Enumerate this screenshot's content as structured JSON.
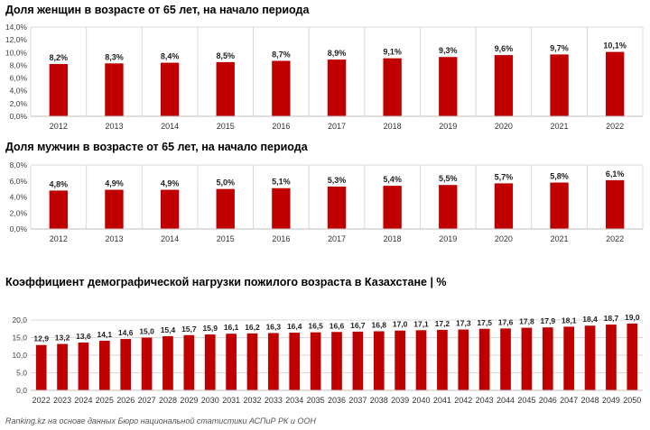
{
  "chart_data": [
    {
      "type": "bar",
      "title": "Доля женщин в возрасте от 65 лет, на начало периода",
      "categories": [
        "2012",
        "2013",
        "2014",
        "2015",
        "2016",
        "2017",
        "2018",
        "2019",
        "2020",
        "2021",
        "2022"
      ],
      "values": [
        8.2,
        8.3,
        8.4,
        8.5,
        8.7,
        8.9,
        9.1,
        9.3,
        9.6,
        9.7,
        10.1
      ],
      "value_labels": [
        "8,2%",
        "8,3%",
        "8,4%",
        "8,5%",
        "8,7%",
        "8,9%",
        "9,1%",
        "9,3%",
        "9,6%",
        "9,7%",
        "10,1%"
      ],
      "ylim": [
        0,
        14
      ],
      "yticks": [
        0,
        2,
        4,
        6,
        8,
        10,
        12,
        14
      ],
      "ytick_labels": [
        "0,0%",
        "2,0%",
        "4,0%",
        "6,0%",
        "8,0%",
        "10,0%",
        "12,0%",
        "14,0%"
      ],
      "bar_color": "#c00000",
      "grid": "vertical"
    },
    {
      "type": "bar",
      "title": "Доля мужчин в возрасте от 65 лет, на начало периода",
      "categories": [
        "2012",
        "2013",
        "2014",
        "2015",
        "2016",
        "2017",
        "2018",
        "2019",
        "2020",
        "2021",
        "2022"
      ],
      "values": [
        4.8,
        4.9,
        4.9,
        5.0,
        5.1,
        5.3,
        5.4,
        5.5,
        5.7,
        5.8,
        6.1
      ],
      "value_labels": [
        "4,8%",
        "4,9%",
        "4,9%",
        "5,0%",
        "5,1%",
        "5,3%",
        "5,4%",
        "5,5%",
        "5,7%",
        "5,8%",
        "6,1%"
      ],
      "ylim": [
        0,
        8
      ],
      "yticks": [
        0,
        2,
        4,
        6,
        8
      ],
      "ytick_labels": [
        "0,0%",
        "2,0%",
        "4,0%",
        "6,0%",
        "8,0%"
      ],
      "bar_color": "#c00000",
      "grid": "vertical"
    },
    {
      "type": "bar",
      "title": "Коэффициент демографической нагрузки пожилого возраста в Казахстане | %",
      "categories": [
        "2022",
        "2023",
        "2024",
        "2025",
        "2026",
        "2027",
        "2028",
        "2029",
        "2030",
        "2031",
        "2032",
        "2033",
        "2034",
        "2035",
        "2036",
        "2037",
        "2038",
        "2039",
        "2040",
        "2041",
        "2042",
        "2043",
        "2044",
        "2045",
        "2046",
        "2047",
        "2048",
        "2049",
        "2050"
      ],
      "values": [
        12.9,
        13.2,
        13.6,
        14.1,
        14.6,
        15.0,
        15.4,
        15.7,
        15.9,
        16.1,
        16.2,
        16.3,
        16.4,
        16.5,
        16.6,
        16.7,
        16.8,
        17.0,
        17.1,
        17.2,
        17.3,
        17.5,
        17.6,
        17.8,
        17.9,
        18.1,
        18.4,
        18.7,
        19.0
      ],
      "value_labels": [
        "12,9",
        "13,2",
        "13,6",
        "14,1",
        "14,6",
        "15,0",
        "15,4",
        "15,7",
        "15,9",
        "16,1",
        "16,2",
        "16,3",
        "16,4",
        "16,5",
        "16,6",
        "16,7",
        "16,8",
        "17,0",
        "17,1",
        "17,2",
        "17,3",
        "17,5",
        "17,6",
        "17,8",
        "17,9",
        "18,1",
        "18,4",
        "18,7",
        "19,0"
      ],
      "ylim": [
        0,
        20
      ],
      "yticks": [
        0,
        5,
        10,
        15,
        20
      ],
      "ytick_labels": [
        "0,0",
        "5,0",
        "10,0",
        "15,0",
        "20,0"
      ],
      "bar_color": "#c00000",
      "grid": "horizontal"
    }
  ],
  "source_note": "Ranking.kz на основе данных Бюро национальной статистики АСПиР РК и ООН"
}
